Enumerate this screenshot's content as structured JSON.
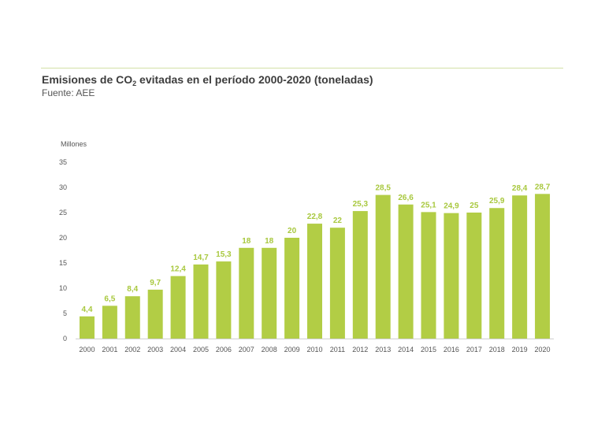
{
  "title": {
    "prefix": "Emisiones de CO",
    "subscript": "2",
    "suffix": " evitadas en el período 2000-2020 (toneladas)"
  },
  "source": "Fuente: AEE",
  "colors": {
    "bar": "#b2cd45",
    "label": "#a8c83e",
    "rule": "#d3e0a6"
  },
  "chart_data": {
    "type": "bar",
    "title": "Emisiones de CO2 evitadas en el período 2000-2020 (toneladas)",
    "subtitle": "Fuente: AEE",
    "unit_label": "Millones",
    "xlabel": "",
    "ylabel": "Millones",
    "ylim": [
      0,
      35
    ],
    "yticks": [
      0,
      5,
      10,
      15,
      20,
      25,
      30,
      35
    ],
    "grid": false,
    "categories": [
      "2000",
      "2001",
      "2002",
      "2003",
      "2004",
      "2005",
      "2006",
      "2007",
      "2008",
      "2009",
      "2010",
      "2011",
      "2012",
      "2013",
      "2014",
      "2015",
      "2016",
      "2017",
      "2018",
      "2019",
      "2020"
    ],
    "values": [
      4.4,
      6.5,
      8.4,
      9.7,
      12.4,
      14.7,
      15.3,
      18,
      18,
      20,
      22.8,
      22,
      25.3,
      28.5,
      26.6,
      25.1,
      24.9,
      25,
      25.9,
      28.4,
      28.7
    ],
    "value_labels": [
      "4,4",
      "6,5",
      "8,4",
      "9,7",
      "12,4",
      "14,7",
      "15,3",
      "18",
      "18",
      "20",
      "22,8",
      "22",
      "25,3",
      "28,5",
      "26,6",
      "25,1",
      "24,9",
      "25",
      "25,9",
      "28,4",
      "28,7"
    ]
  }
}
